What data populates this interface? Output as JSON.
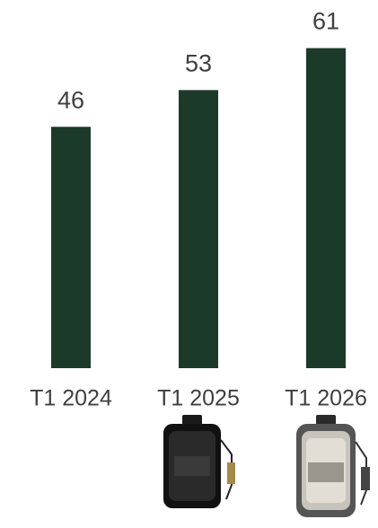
{
  "chart_data": {
    "type": "bar",
    "categories": [
      "T1 2024",
      "T1 2025",
      "T1 2026"
    ],
    "values": [
      46,
      53,
      61
    ],
    "color": "#1b3a2a",
    "ylim": [
      0,
      70
    ]
  }
}
